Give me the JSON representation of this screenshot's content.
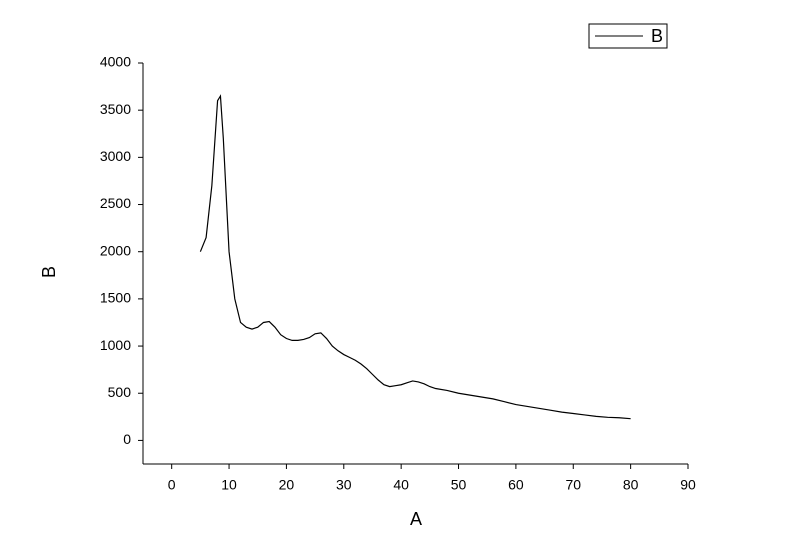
{
  "chart_data": {
    "type": "line",
    "x_label": "A",
    "y_label": "B",
    "x": [
      5,
      6,
      7,
      8,
      8.5,
      9,
      10,
      11,
      12,
      13,
      14,
      15,
      16,
      17,
      18,
      19,
      20,
      21,
      22,
      23,
      24,
      25,
      26,
      27,
      28,
      29,
      30,
      31,
      32,
      33,
      34,
      35,
      36,
      37,
      38,
      39,
      40,
      41,
      42,
      43,
      44,
      45,
      46,
      48,
      50,
      52,
      54,
      56,
      58,
      60,
      62,
      64,
      66,
      68,
      70,
      72,
      74,
      76,
      78,
      80
    ],
    "series": [
      {
        "name": "B",
        "color": "#000000",
        "values": [
          2000,
          2150,
          2700,
          3600,
          3650,
          3200,
          2000,
          1500,
          1250,
          1200,
          1180,
          1200,
          1250,
          1260,
          1200,
          1120,
          1080,
          1060,
          1060,
          1070,
          1090,
          1130,
          1140,
          1080,
          1000,
          950,
          910,
          880,
          850,
          810,
          760,
          700,
          640,
          590,
          570,
          580,
          590,
          610,
          630,
          620,
          600,
          570,
          550,
          530,
          500,
          480,
          460,
          440,
          410,
          380,
          360,
          340,
          320,
          300,
          285,
          270,
          255,
          245,
          240,
          230
        ]
      }
    ],
    "xlim": [
      -5,
      90
    ],
    "ylim": [
      -250,
      4000
    ],
    "xticks": [
      0,
      10,
      20,
      30,
      40,
      50,
      60,
      70,
      80,
      90
    ],
    "yticks": [
      0,
      500,
      1000,
      1500,
      2000,
      2500,
      3000,
      3500,
      4000
    ],
    "legend": "top-right"
  }
}
